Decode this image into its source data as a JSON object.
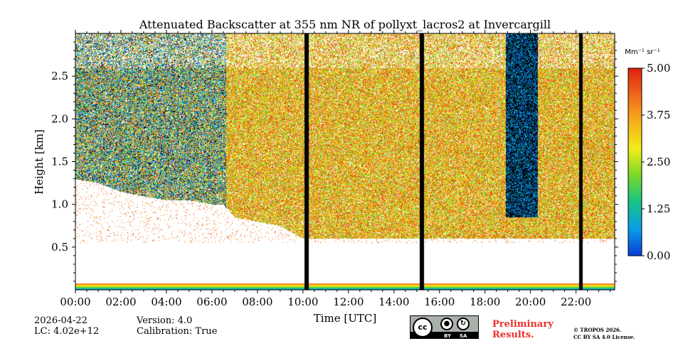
{
  "chart_data": {
    "type": "heatmap",
    "title": "Attenuated Backscatter at 355 nm NR of pollyxt_lacros2 at Invercargill",
    "xlabel": "Time [UTC]",
    "ylabel": "Height [km]",
    "xlim": [
      0,
      23.7
    ],
    "ylim": [
      0,
      3.0
    ],
    "x_ticks": [
      0,
      2,
      4,
      6,
      8,
      10,
      12,
      14,
      16,
      18,
      20,
      22
    ],
    "x_tick_labels": [
      "00:00",
      "02:00",
      "04:00",
      "06:00",
      "08:00",
      "10:00",
      "12:00",
      "14:00",
      "16:00",
      "18:00",
      "20:00",
      "22:00"
    ],
    "y_ticks": [
      0.5,
      1.0,
      1.5,
      2.0,
      2.5
    ],
    "y_tick_labels": [
      "0.5",
      "1.0",
      "1.5",
      "2.0",
      "2.5"
    ],
    "colorbar": {
      "unit_label": "Mm⁻¹ sr⁻¹",
      "range": [
        0.0,
        5.0
      ],
      "ticks": [
        0.0,
        1.25,
        2.5,
        3.75,
        5.0
      ],
      "tick_labels": [
        "0.00",
        "1.25",
        "2.50",
        "3.75",
        "5.00"
      ],
      "colormap": [
        "#0b3bd8",
        "#0a9ee8",
        "#16c48a",
        "#7ad82a",
        "#f2ee1a",
        "#f6b21c",
        "#f26a1c",
        "#e0220f"
      ]
    },
    "cloud_base_km": [
      [
        0.0,
        1.3
      ],
      [
        1.0,
        1.25
      ],
      [
        2.0,
        1.15
      ],
      [
        3.0,
        1.1
      ],
      [
        4.0,
        1.05
      ],
      [
        5.0,
        1.05
      ],
      [
        6.0,
        1.0
      ],
      [
        6.5,
        1.0
      ],
      [
        7.0,
        0.85
      ],
      [
        9.0,
        0.75
      ],
      [
        10.0,
        0.6
      ]
    ],
    "data_gaps_hours": [
      10.15,
      15.2,
      22.2
    ],
    "low_signal_column_hours": [
      [
        18.9,
        20.3
      ]
    ],
    "surface_layer_km": 0.08
  },
  "footer": {
    "date": "2026-04-22",
    "lc": "LC: 4.02e+12",
    "version": "Version: 4.0",
    "calibration": "Calibration: True",
    "preliminary": "Preliminary Results.",
    "copyright_line1": "© TROPOS 2026.",
    "copyright_line2": "CC BY SA 4.0 License.",
    "license_badge": {
      "cc": "cc",
      "by": "BY",
      "sa": "SA"
    }
  }
}
